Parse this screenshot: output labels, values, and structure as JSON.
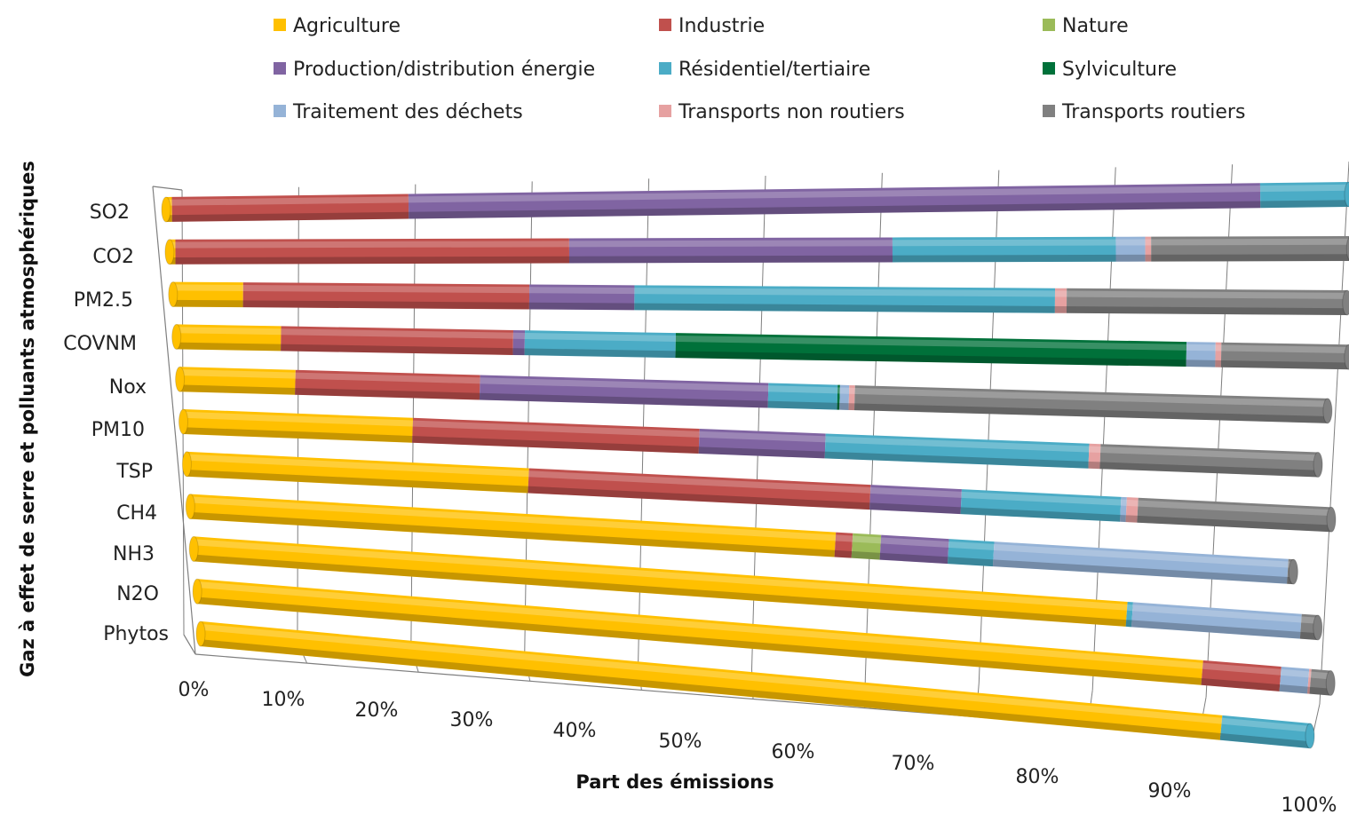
{
  "chart_data": {
    "type": "bar",
    "stacked": true,
    "orientation": "horizontal",
    "style": "3d-cylinder",
    "xlabel": "Part des émissions",
    "ylabel": "Gaz à effet de serre et polluants atmosphériques",
    "xlim": [
      0,
      100
    ],
    "x_ticks": [
      "0%",
      "10%",
      "20%",
      "30%",
      "40%",
      "50%",
      "60%",
      "70%",
      "80%",
      "90%",
      "100%"
    ],
    "grid": true,
    "legend_position": "top",
    "categories": [
      "SO2",
      "CO2",
      "PM2.5",
      "COVNM",
      "Nox",
      "PM10",
      "TSP",
      "CH4",
      "NH3",
      "N2O",
      "Phytos"
    ],
    "series": [
      {
        "name": "Agriculture",
        "color": "#FFC000",
        "values": [
          0.5,
          0.5,
          6,
          9,
          10,
          20,
          30,
          57,
          83,
          90,
          92
        ]
      },
      {
        "name": "Industrie",
        "color": "#C0504D",
        "values": [
          20,
          33.5,
          24.5,
          20,
          16,
          25,
          30,
          1.5,
          0,
          7,
          0
        ]
      },
      {
        "name": "Nature",
        "color": "#9BBB59",
        "values": [
          0,
          0,
          0,
          0,
          0,
          0,
          0,
          2.5,
          0,
          0,
          0
        ]
      },
      {
        "name": "Production/distribution énergie",
        "color": "#8064A2",
        "values": [
          72,
          27.5,
          9,
          1,
          25,
          11,
          8,
          6,
          0,
          0,
          0
        ]
      },
      {
        "name": "Résidentiel/tertiaire",
        "color": "#4BACC6",
        "values": [
          7.5,
          19,
          36,
          13,
          6,
          23,
          14,
          4,
          0.5,
          0,
          8
        ]
      },
      {
        "name": "Sylviculture",
        "color": "#00713A",
        "values": [
          0,
          0,
          0,
          44,
          0.2,
          0,
          0,
          0,
          0,
          0,
          0
        ]
      },
      {
        "name": "Traitement des déchets",
        "color": "#95B3D7",
        "values": [
          0,
          2.5,
          0,
          2.5,
          0.8,
          0,
          0.5,
          26,
          15,
          2.5,
          0
        ]
      },
      {
        "name": "Transports non routiers",
        "color": "#E6A1A1",
        "values": [
          0,
          0.5,
          1,
          0.5,
          0.5,
          1,
          1,
          0,
          0,
          0.2,
          0
        ]
      },
      {
        "name": "Transports routiers",
        "color": "#808080",
        "values": [
          0,
          17,
          24,
          11,
          41,
          19,
          17,
          0.5,
          1.5,
          1.8,
          0
        ]
      }
    ]
  }
}
